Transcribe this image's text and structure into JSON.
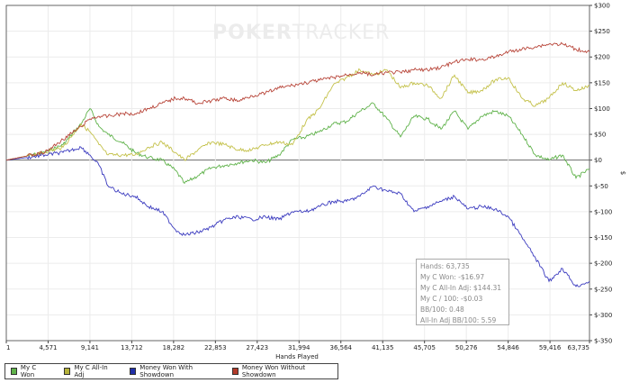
{
  "logo": {
    "brand_bold": "POKER",
    "brand_light": "TRACKER"
  },
  "chart_data": {
    "type": "line",
    "xlabel": "Hands Played",
    "ylabel": "$",
    "xlim": [
      1,
      63735
    ],
    "ylim": [
      -350,
      300
    ],
    "grid": true,
    "legend_position": "bottom-left",
    "x_ticks": [
      "1",
      "4,571",
      "9,141",
      "13,712",
      "18,282",
      "22,853",
      "27,423",
      "31,994",
      "36,564",
      "41,135",
      "45,705",
      "50,276",
      "54,846",
      "59,416",
      "63,735"
    ],
    "x_tick_values": [
      1,
      4571,
      9141,
      13712,
      18282,
      22853,
      27423,
      31994,
      36564,
      41135,
      45705,
      50276,
      54846,
      59416,
      63735
    ],
    "y_ticks": [
      "$300",
      "$250",
      "$200",
      "$150",
      "$100",
      "$50",
      "$0",
      "$-50",
      "$-100",
      "$-150",
      "$-200",
      "$-250",
      "$-300",
      "$-350"
    ],
    "y_tick_values": [
      300,
      250,
      200,
      150,
      100,
      50,
      0,
      -50,
      -100,
      -150,
      -200,
      -250,
      -300,
      -350
    ],
    "x": [
      1,
      2262,
      4229,
      6197,
      8164,
      9147,
      10131,
      11114,
      12589,
      14065,
      15540,
      17015,
      18491,
      19474,
      20950,
      22425,
      23900,
      25376,
      26851,
      28326,
      29802,
      31277,
      32752,
      34228,
      35703,
      37178,
      38654,
      40129,
      41604,
      43079,
      44555,
      46030,
      47505,
      48981,
      50456,
      51932,
      53407,
      54882,
      56357,
      57833,
      59308,
      60783,
      62259,
      63735
    ],
    "series": [
      {
        "name": "My C Won",
        "color": "#5fb24a",
        "values": [
          0,
          8,
          15,
          30,
          70,
          100,
          65,
          50,
          35,
          15,
          5,
          0,
          -20,
          -45,
          -30,
          -15,
          -10,
          -5,
          0,
          -5,
          10,
          40,
          45,
          55,
          70,
          75,
          95,
          110,
          80,
          45,
          85,
          80,
          60,
          95,
          60,
          85,
          95,
          85,
          50,
          10,
          0,
          10,
          -35,
          -17
        ]
      },
      {
        "name": "My C All-In Adj",
        "color": "#c4c14a",
        "values": [
          0,
          8,
          15,
          25,
          70,
          55,
          30,
          10,
          10,
          10,
          25,
          35,
          15,
          0,
          20,
          35,
          30,
          20,
          20,
          30,
          35,
          30,
          75,
          100,
          145,
          160,
          175,
          165,
          175,
          140,
          150,
          145,
          120,
          165,
          130,
          135,
          155,
          160,
          120,
          105,
          120,
          150,
          135,
          144
        ]
      },
      {
        "name": "Money Won With Showdown",
        "color": "#3b3bbf",
        "values": [
          0,
          5,
          10,
          15,
          25,
          10,
          -10,
          -50,
          -65,
          -70,
          -90,
          -100,
          -135,
          -145,
          -140,
          -130,
          -115,
          -110,
          -115,
          -110,
          -115,
          -100,
          -100,
          -90,
          -80,
          -80,
          -70,
          -50,
          -60,
          -65,
          -100,
          -90,
          -80,
          -70,
          -95,
          -90,
          -95,
          -110,
          -150,
          -190,
          -235,
          -210,
          -245,
          -235
        ]
      },
      {
        "name": "Money Won Without Showdown",
        "color": "#b8463a",
        "values": [
          0,
          8,
          15,
          40,
          65,
          80,
          85,
          85,
          90,
          90,
          100,
          110,
          120,
          120,
          110,
          115,
          120,
          115,
          125,
          130,
          140,
          145,
          150,
          155,
          160,
          165,
          170,
          165,
          170,
          170,
          175,
          175,
          180,
          190,
          195,
          195,
          200,
          210,
          215,
          220,
          225,
          225,
          215,
          210
        ]
      }
    ]
  },
  "legend": [
    {
      "label": "My C Won",
      "color": "#5fb24a"
    },
    {
      "label": "My C All-In Adj",
      "color": "#b5b23a"
    },
    {
      "label": "Money Won With Showdown",
      "color": "#1f2fa8"
    },
    {
      "label": "Money Won Without Showdown",
      "color": "#b23a2a"
    }
  ],
  "tooltip": {
    "hands": "Hands: 63,735",
    "won": "My C Won: -$16.97",
    "allin": "My C All-In Adj: $144.31",
    "per100": "My C / 100: -$0.03",
    "bb100": "BB/100: 0.48",
    "allin_bb100": "All-In Adj BB/100: 5.59"
  }
}
